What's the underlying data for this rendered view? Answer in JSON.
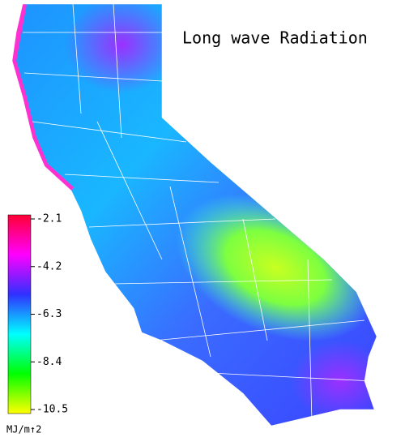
{
  "title": "Long wave Radiation",
  "colorbar": {
    "label": "MJ/m↑2",
    "lim": [
      -2.1,
      -10.5
    ],
    "ticks": [
      -2.1,
      -4.2,
      -6.3,
      -8.4,
      -10.5
    ],
    "colors": [
      "#ff0033",
      "#ff00ff",
      "#3030ff",
      "#00ffff",
      "#00ff00",
      "#ffff00"
    ]
  }
}
